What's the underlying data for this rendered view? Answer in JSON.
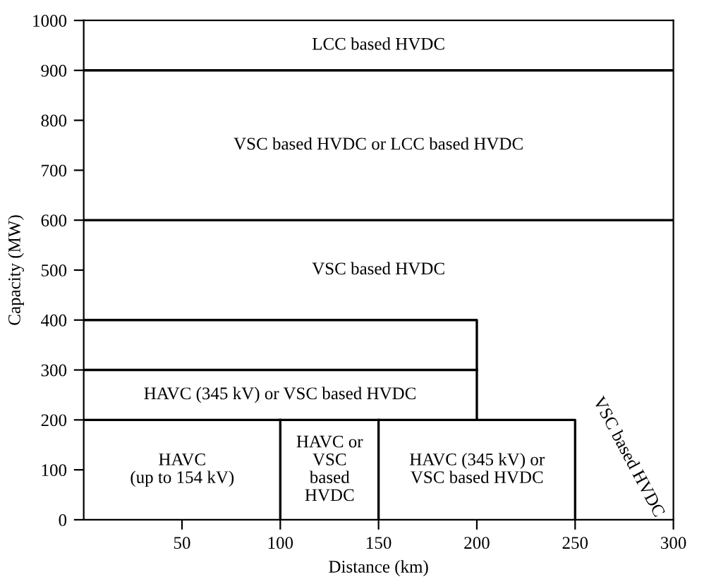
{
  "chart_data": {
    "type": "line",
    "xlabel": "Distance (km)",
    "ylabel": "Capacity (MW)",
    "xlim": [
      0,
      300
    ],
    "ylim": [
      0,
      1000
    ],
    "xticks": [
      50,
      100,
      150,
      200,
      250,
      300
    ],
    "yticks": [
      0,
      100,
      200,
      300,
      400,
      500,
      600,
      700,
      800,
      900,
      1000
    ],
    "grid": false,
    "legend": false,
    "marker": "none",
    "line_style": "solid",
    "series": [
      {
        "color": "#000000",
        "x": [
          0,
          300
        ],
        "values": [
          900,
          900
        ]
      },
      {
        "color": "#000000",
        "x": [
          0,
          300
        ],
        "values": [
          600,
          600
        ]
      },
      {
        "color": "#000000",
        "x": [
          0,
          200,
          200
        ],
        "values": [
          400,
          400,
          200
        ]
      },
      {
        "color": "#000000",
        "x": [
          0,
          200
        ],
        "values": [
          300,
          300
        ]
      },
      {
        "color": "#000000",
        "x": [
          0,
          250,
          250
        ],
        "values": [
          200,
          200,
          0
        ]
      },
      {
        "color": "#000000",
        "x": [
          100,
          100
        ],
        "values": [
          0,
          200
        ]
      },
      {
        "color": "#000000",
        "x": [
          150,
          150
        ],
        "values": [
          0,
          200
        ]
      }
    ],
    "annotations": [
      "LCC based HVDC",
      "VSC based HVDC or LCC based HVDC",
      "VSC based HVDC",
      "HAVC (345 kV) or VSC based HVDC",
      "HAVC\n(up to 154 kV)",
      "HAVC or\nVSC\nbased\nHVDC",
      "HAVC (345 kV) or\nVSC based HVDC",
      "VSC based HVDC"
    ]
  }
}
